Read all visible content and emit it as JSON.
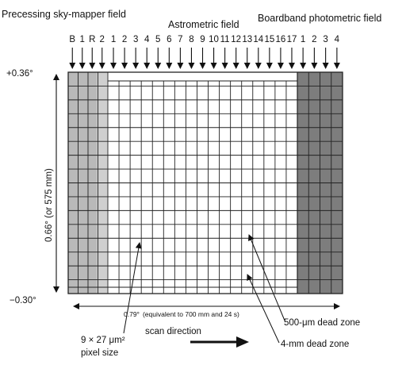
{
  "headers": {
    "processing": "Precessing sky-mapper field",
    "astrometric": "Astrometric field",
    "broadband": "Boardband photometric field"
  },
  "sky_mapper_columns": [
    "B",
    "1",
    "R",
    "2"
  ],
  "astrometric_columns": [
    "1",
    "2",
    "3",
    "4",
    "5",
    "6",
    "7",
    "8",
    "9",
    "10",
    "11",
    "12",
    "13",
    "14",
    "15",
    "16",
    "17"
  ],
  "broadband_columns": [
    "1",
    "2",
    "3",
    "4"
  ],
  "axis": {
    "top_value": "+0.36°",
    "bottom_value": "−0.30°",
    "vertical_extent": "0.66° (or 575 mm)",
    "horizontal_extent": "0.79°",
    "horizontal_note": "(equivalent to 700 mm and 24 s)"
  },
  "annotations": {
    "pixel_size_line1": "9 × 27 μm²",
    "pixel_size_line2": "pixel size",
    "scan_direction": "scan direction",
    "dead_zone_small": "500-μm dead zone",
    "dead_zone_large": "4-mm dead zone"
  },
  "colors": {
    "sky_mapper_fill": "#b9b9b9",
    "sky_mapper_fill_last": "#cfcfcf",
    "broadband_fill": "#7d7d7d",
    "grid_line": "#222222",
    "background": "#ffffff"
  }
}
